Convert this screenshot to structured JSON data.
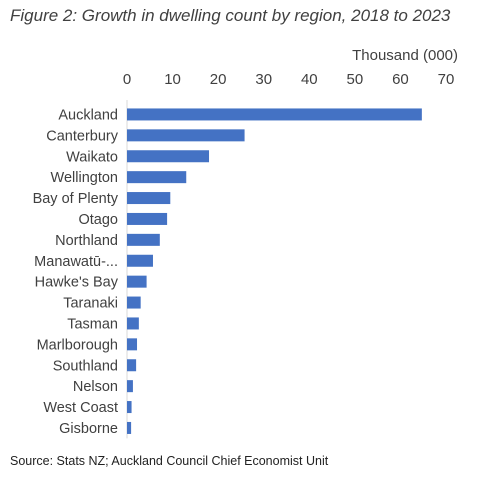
{
  "title": "Figure 2: Growth in dwelling count by region, 2018 to 2023",
  "source": "Source: Stats NZ; Auckland Council Chief Economist Unit",
  "chart_data": {
    "type": "bar",
    "orientation": "horizontal",
    "xlabel": "Thousand (000)",
    "x_axis_position": "top",
    "xlim": [
      0,
      70
    ],
    "xticks": [
      0,
      10,
      20,
      30,
      40,
      50,
      60,
      70
    ],
    "grid": false,
    "bar_color": "#4472C4",
    "categories": [
      "Auckland",
      "Canterbury",
      "Waikato",
      "Wellington",
      "Bay of Plenty",
      "Otago",
      "Northland",
      "Manawatū-...",
      "Hawke's Bay",
      "Taranaki",
      "Tasman",
      "Marlborough",
      "Southland",
      "Nelson",
      "West Coast",
      "Gisborne"
    ],
    "values": [
      64.7,
      25.8,
      18.0,
      13.0,
      9.5,
      8.8,
      7.2,
      5.7,
      4.3,
      3.0,
      2.6,
      2.2,
      2.0,
      1.3,
      1.0,
      0.9
    ]
  }
}
